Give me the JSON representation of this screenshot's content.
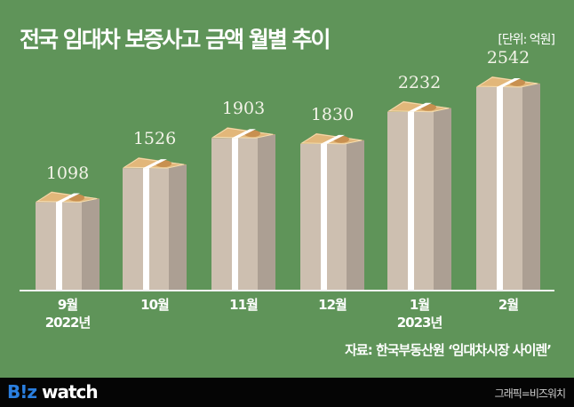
{
  "header": {
    "title": "전국 임대차 보증사고 금액 월별 추이",
    "unit": "[단위: 억원]"
  },
  "chart_data": {
    "type": "bar",
    "title": "전국 임대차 보증사고 금액 월별 추이",
    "unit": "억원",
    "categories": [
      "9월 2022년",
      "10월",
      "11월",
      "12월",
      "1월 2023년",
      "2월"
    ],
    "values": [
      1098,
      1526,
      1903,
      1830,
      2232,
      2542
    ],
    "xlabel": "",
    "ylabel": "억원",
    "grid": false,
    "legend": "none"
  },
  "bars": [
    {
      "value": "1098",
      "month": "9월",
      "year": "2022년"
    },
    {
      "value": "1526",
      "month": "10월",
      "year": ""
    },
    {
      "value": "1903",
      "month": "11월",
      "year": ""
    },
    {
      "value": "1830",
      "month": "12월",
      "year": ""
    },
    {
      "value": "2232",
      "month": "1월",
      "year": "2023년"
    },
    {
      "value": "2542",
      "month": "2월",
      "year": ""
    }
  ],
  "source": "자료: 한국부동산원 ‘임대차시장 사이렌’",
  "footer": {
    "logo_b": "B!z",
    "logo_rest": " watch",
    "credit": "그래픽=비즈워치"
  },
  "colors": {
    "background": "#5f9459",
    "bar_front": "#cdbfb0",
    "bar_side": "#ac9f93",
    "ribbon": "#ffffff",
    "bill": "#e2b77a",
    "footer": "#050505"
  }
}
